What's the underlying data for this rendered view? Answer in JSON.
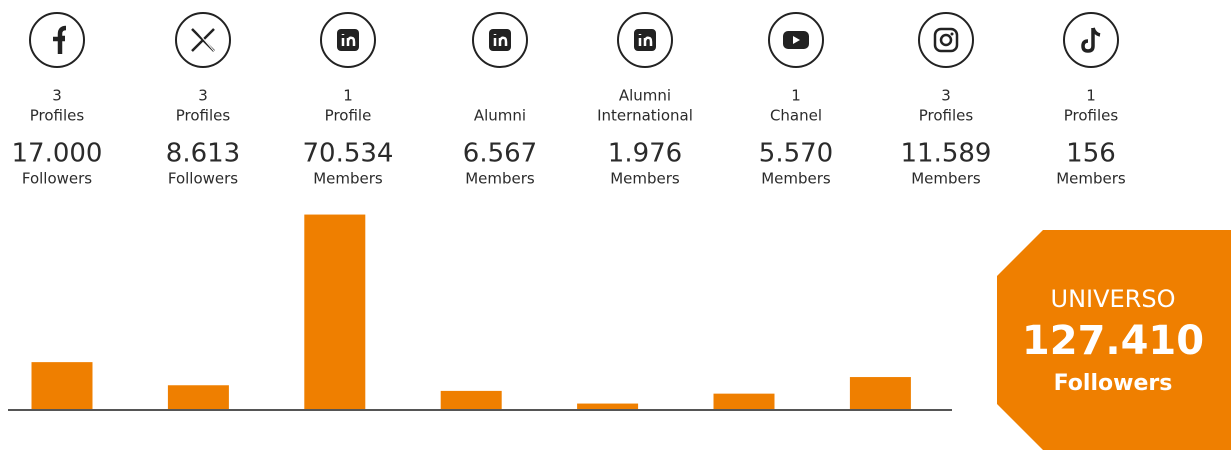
{
  "columns": [
    {
      "count": 3,
      "label": "Profiles",
      "amount": {
        "value": 17000,
        "label": "17.000"
      },
      "unit": "Followers"
    },
    {
      "count": 3,
      "label": "Profiles",
      "amount": {
        "value": 8613,
        "label": "8.613"
      },
      "unit": "Followers"
    },
    {
      "count": 1,
      "label": "Profile",
      "amount": {
        "value": 70534,
        "label": "70.534"
      },
      "unit": "Members"
    },
    {
      "label": "Alumni",
      "amount": {
        "value": 6567,
        "label": "6.567"
      },
      "unit": "Members"
    },
    {
      "top": "Alumni",
      "label": "International",
      "amount": {
        "value": 1976,
        "label": "1.976"
      },
      "unit": "Members"
    },
    {
      "count": 1,
      "label": "Chanel",
      "amount": {
        "value": 5570,
        "label": "5.570"
      },
      "unit": "Members"
    },
    {
      "count": 3,
      "label": "Profiles",
      "amount": {
        "value": 11589,
        "label": "11.589"
      },
      "unit": "Members"
    },
    {
      "count": 1,
      "label": "Profiles",
      "amount": 156,
      "unit": "Members"
    }
  ],
  "chart_data": {
    "type": "bar",
    "values": [
      17000,
      8613,
      70534,
      6567,
      1976,
      5570,
      11589
    ],
    "color": "#ef7f00",
    "ylim": [
      0,
      74000
    ]
  },
  "total": {
    "title": "UNIVERSO",
    "amount": {
      "value": 127410,
      "label": "127.410"
    },
    "unit": "Followers"
  }
}
